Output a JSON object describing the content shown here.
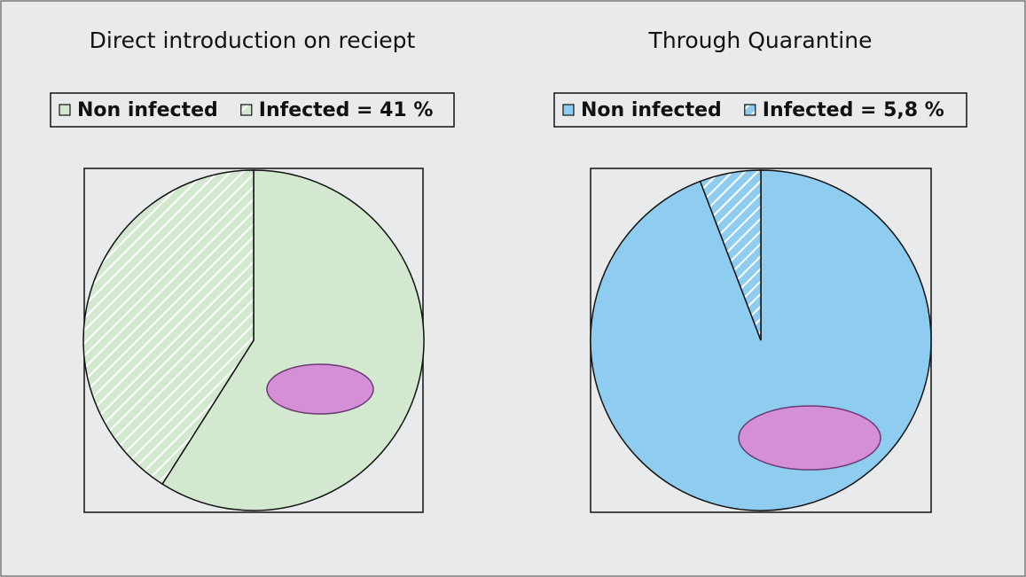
{
  "chart_data": [
    {
      "type": "pie",
      "title": "Direct introduction on reciept",
      "categories": [
        "Non infected",
        "Infected = 41 %"
      ],
      "values": [
        59,
        41
      ],
      "colors": [
        "#d3e9cf",
        "#d3e9cf"
      ],
      "hatch": [
        false,
        true
      ]
    },
    {
      "type": "pie",
      "title": "Through Quarantine",
      "categories": [
        "Non infected",
        "Infected = 5,8 %"
      ],
      "values": [
        94.2,
        5.8
      ],
      "colors": [
        "#8fcdf0",
        "#8fcdf0"
      ],
      "hatch": [
        false,
        true
      ]
    }
  ]
}
